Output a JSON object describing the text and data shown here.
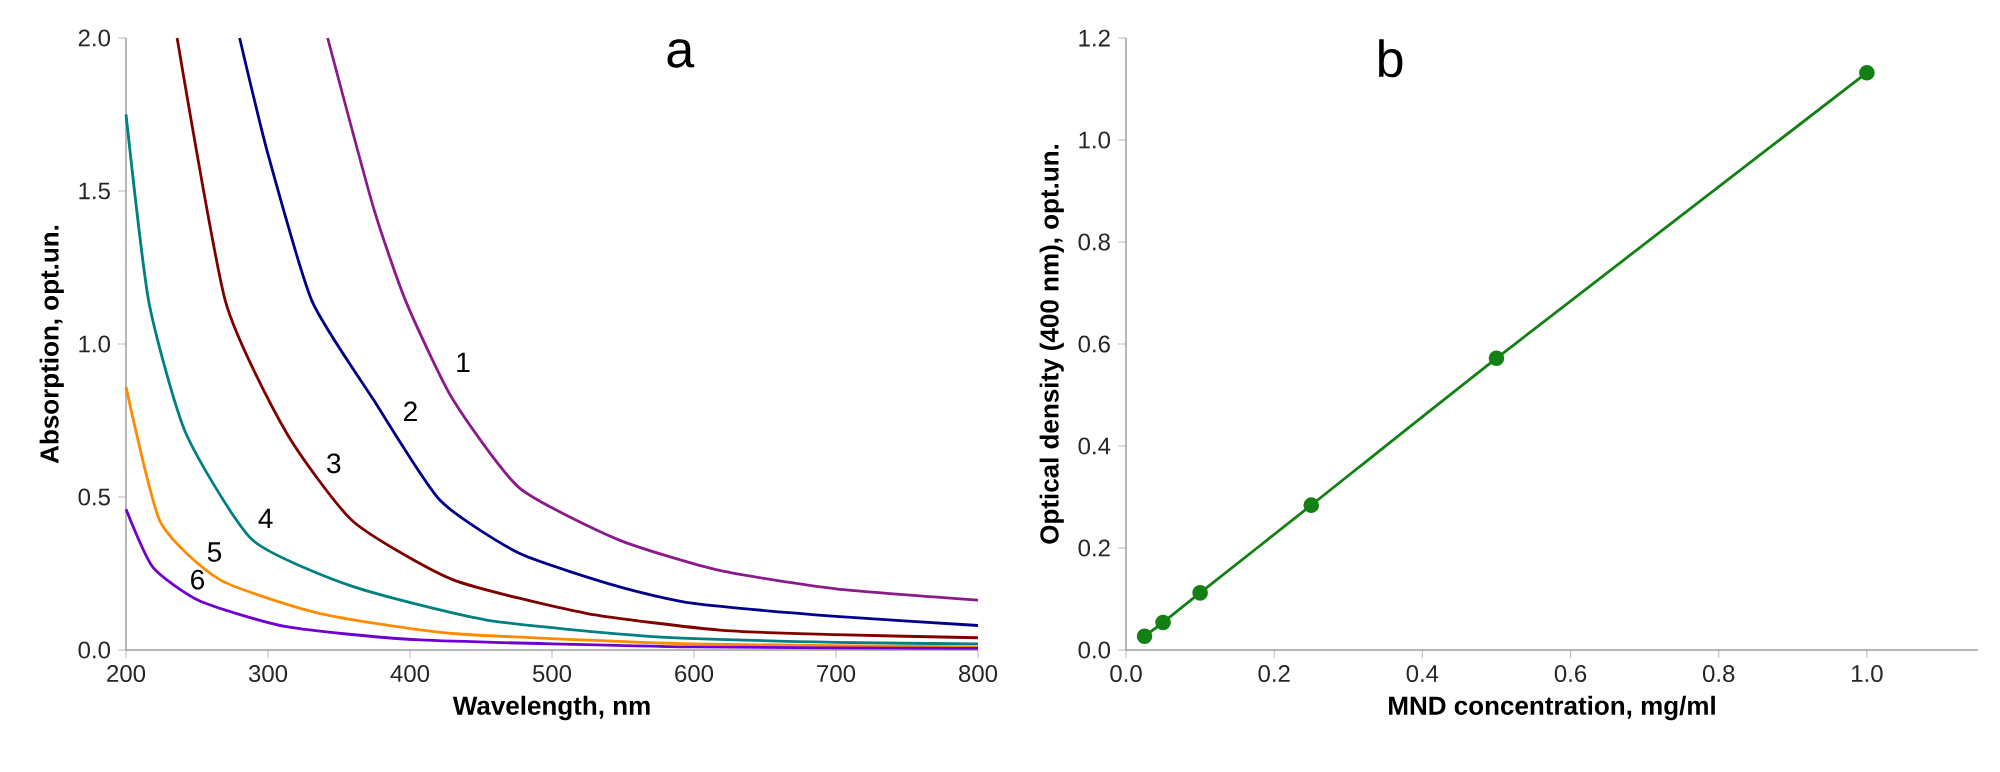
{
  "chart_data": [
    {
      "type": "line",
      "title": "a",
      "xlabel": "Wavelength, nm",
      "ylabel": "Absorption, opt.un.",
      "xlim": [
        200,
        800
      ],
      "ylim": [
        0,
        2.0
      ],
      "xticks": [
        200,
        300,
        400,
        500,
        600,
        700,
        800
      ],
      "yticks": [
        {
          "value": 0,
          "label": "0.0"
        },
        0.5,
        {
          "value": 1,
          "label": "1.0"
        },
        1.5,
        {
          "value": 2,
          "label": "2.0"
        }
      ],
      "series": [
        {
          "color": "#8b1a8b",
          "x": [
            342,
            374,
            397,
            430,
            477,
            547,
            618,
            700,
            800
          ],
          "values": [
            2.0,
            1.45,
            1.14,
            0.82,
            0.53,
            0.36,
            0.26,
            0.2,
            0.163
          ]
        },
        {
          "color": "#00008b",
          "x": [
            280,
            300,
            331,
            374,
            421,
            477,
            547,
            600,
            700,
            800
          ],
          "values": [
            2.0,
            1.62,
            1.14,
            0.82,
            0.49,
            0.316,
            0.207,
            0.152,
            0.11,
            0.08
          ]
        },
        {
          "color": "#800000",
          "x": [
            236,
            270,
            313,
            360,
            430,
            524,
            618,
            700,
            800
          ],
          "values": [
            2.0,
            1.14,
            0.71,
            0.42,
            0.23,
            0.12,
            0.065,
            0.05,
            0.04
          ]
        },
        {
          "color": "#008080",
          "x": [
            200,
            216,
            242,
            289,
            360,
            454,
            571,
            700,
            800
          ],
          "values": [
            1.75,
            1.14,
            0.71,
            0.36,
            0.207,
            0.098,
            0.044,
            0.025,
            0.02
          ]
        },
        {
          "color": "#ff8c00",
          "x": [
            200,
            224,
            266,
            336,
            430,
            600,
            800
          ],
          "values": [
            0.86,
            0.42,
            0.23,
            0.12,
            0.054,
            0.02,
            0.01
          ]
        },
        {
          "color": "#7000d0",
          "x": [
            200,
            219,
            252,
            313,
            407,
            600,
            800
          ],
          "values": [
            0.46,
            0.27,
            0.16,
            0.076,
            0.033,
            0.01,
            0.005
          ]
        }
      ],
      "annotations": [
        {
          "text": "1",
          "x": 417,
          "y": 0.94
        },
        {
          "text": "2",
          "x": 380,
          "y": 0.78
        },
        {
          "text": "3",
          "x": 326,
          "y": 0.61
        },
        {
          "text": "4",
          "x": 278,
          "y": 0.43
        },
        {
          "text": "5",
          "x": 242,
          "y": 0.32
        },
        {
          "text": "6",
          "x": 230,
          "y": 0.23
        }
      ]
    },
    {
      "type": "line",
      "title": "b",
      "xlabel": "MND concentration, mg/ml",
      "ylabel": "Optical density (400 nm), opt.un.",
      "xlim": [
        0,
        1.15
      ],
      "ylim": [
        0,
        1.2
      ],
      "xticks": [
        {
          "value": 0,
          "label": "0.0"
        },
        0.2,
        0.4,
        0.6,
        0.8,
        {
          "value": 1,
          "label": "1.0"
        }
      ],
      "yticks": [
        {
          "value": 0,
          "label": "0.0"
        },
        0.2,
        0.4,
        0.6,
        0.8,
        {
          "value": 1,
          "label": "1.0"
        },
        1.2
      ],
      "marker": "circle",
      "series": [
        {
          "color": "#138013",
          "x": [
            0.025,
            0.05,
            0.1,
            0.25,
            0.5,
            1.0
          ],
          "values": [
            0.027,
            0.054,
            0.112,
            0.284,
            0.572,
            1.132
          ]
        }
      ]
    }
  ]
}
